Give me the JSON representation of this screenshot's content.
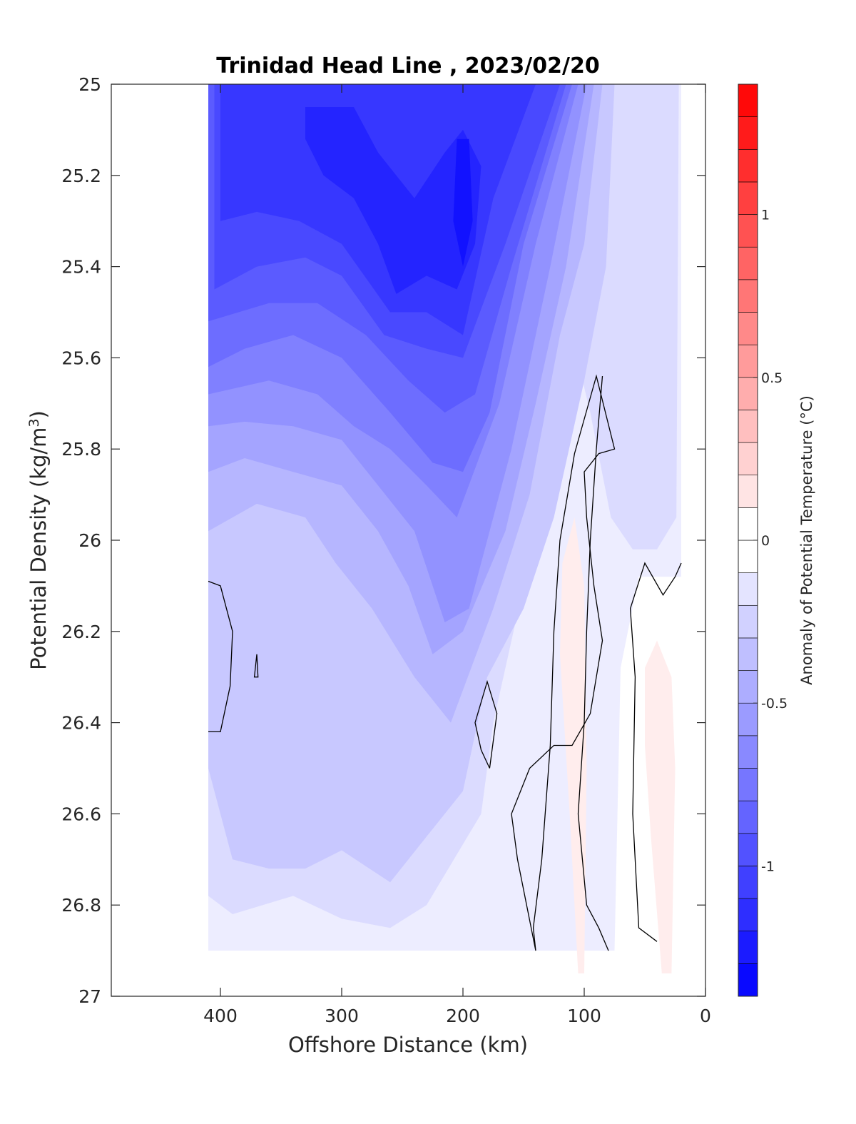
{
  "chart_data": {
    "type": "contour",
    "title": "Trinidad Head Line , 2023/02/20",
    "xlabel": "Offshore Distance (km)",
    "ylabel": "Potential Density (kg/m³)",
    "colorbar_label": "Anomaly of Potential Temperature (°C)",
    "x_axis_reversed": true,
    "y_axis_reversed": true,
    "xlim": [
      0,
      490
    ],
    "ylim": [
      25,
      27
    ],
    "xticks": [
      400,
      300,
      200,
      100,
      0
    ],
    "xtick_labels": [
      "400",
      "300",
      "200",
      "100",
      "0"
    ],
    "yticks": [
      25,
      25.2,
      25.4,
      25.6,
      25.8,
      26,
      26.2,
      26.4,
      26.6,
      26.8,
      27
    ],
    "ytick_labels": [
      "25",
      "25.2",
      "25.4",
      "25.6",
      "25.8",
      "26",
      "26.2",
      "26.4",
      "26.6",
      "26.8",
      "27"
    ],
    "colorbar": {
      "clim": [
        -1.4,
        1.4
      ],
      "ticks": [
        -1,
        -0.5,
        0,
        0.5,
        1
      ],
      "tick_labels": [
        "-1",
        "-0.5",
        "0",
        "0.5",
        "1"
      ],
      "levels_step": 0.1,
      "negative_color": "#0000ff",
      "positive_color": "#ff0000",
      "zero_color": "#ffffff"
    },
    "data_extent": {
      "x": [
        20,
        410
      ],
      "y": [
        25,
        26.9
      ]
    },
    "anomaly_regions": [
      {
        "level": -0.1,
        "polygon": [
          [
            410,
            25
          ],
          [
            20,
            25
          ],
          [
            20,
            26.08
          ],
          [
            55,
            26.08
          ],
          [
            70,
            26.28
          ],
          [
            75,
            26.9
          ],
          [
            410,
            26.9
          ]
        ]
      },
      {
        "level": -0.2,
        "polygon": [
          [
            410,
            25
          ],
          [
            22,
            25
          ],
          [
            24,
            25.95
          ],
          [
            40,
            26.02
          ],
          [
            60,
            26.02
          ],
          [
            78,
            25.95
          ],
          [
            95,
            25.72
          ],
          [
            115,
            25.5
          ],
          [
            150,
            26.1
          ],
          [
            175,
            26.4
          ],
          [
            185,
            26.6
          ],
          [
            230,
            26.8
          ],
          [
            260,
            26.85
          ],
          [
            300,
            26.83
          ],
          [
            340,
            26.78
          ],
          [
            390,
            26.82
          ],
          [
            410,
            26.78
          ]
        ]
      },
      {
        "level": -0.3,
        "polygon": [
          [
            410,
            25
          ],
          [
            75,
            25
          ],
          [
            82,
            25.4
          ],
          [
            100,
            25.65
          ],
          [
            125,
            25.95
          ],
          [
            150,
            26.15
          ],
          [
            180,
            26.3
          ],
          [
            200,
            26.55
          ],
          [
            230,
            26.65
          ],
          [
            260,
            26.75
          ],
          [
            300,
            26.68
          ],
          [
            330,
            26.72
          ],
          [
            360,
            26.72
          ],
          [
            390,
            26.7
          ],
          [
            410,
            26.5
          ]
        ]
      },
      {
        "level": -0.4,
        "polygon": [
          [
            410,
            25
          ],
          [
            85,
            25
          ],
          [
            100,
            25.35
          ],
          [
            120,
            25.55
          ],
          [
            145,
            25.9
          ],
          [
            175,
            26.15
          ],
          [
            210,
            26.4
          ],
          [
            240,
            26.3
          ],
          [
            275,
            26.15
          ],
          [
            305,
            26.05
          ],
          [
            330,
            25.95
          ],
          [
            370,
            25.92
          ],
          [
            410,
            25.98
          ]
        ]
      },
      {
        "level": -0.5,
        "polygon": [
          [
            410,
            25
          ],
          [
            92,
            25
          ],
          [
            115,
            25.4
          ],
          [
            140,
            25.7
          ],
          [
            165,
            25.98
          ],
          [
            200,
            26.2
          ],
          [
            225,
            26.25
          ],
          [
            245,
            26.1
          ],
          [
            270,
            25.98
          ],
          [
            300,
            25.88
          ],
          [
            340,
            25.85
          ],
          [
            380,
            25.82
          ],
          [
            410,
            25.85
          ]
        ]
      },
      {
        "level": -0.6,
        "polygon": [
          [
            410,
            25
          ],
          [
            98,
            25
          ],
          [
            128,
            25.4
          ],
          [
            160,
            25.8
          ],
          [
            195,
            26.15
          ],
          [
            215,
            26.18
          ],
          [
            240,
            25.98
          ],
          [
            270,
            25.88
          ],
          [
            300,
            25.78
          ],
          [
            340,
            25.75
          ],
          [
            380,
            25.74
          ],
          [
            410,
            25.75
          ]
        ]
      },
      {
        "level": -0.7,
        "polygon": [
          [
            410,
            25
          ],
          [
            105,
            25
          ],
          [
            140,
            25.35
          ],
          [
            170,
            25.7
          ],
          [
            205,
            25.95
          ],
          [
            230,
            25.88
          ],
          [
            260,
            25.8
          ],
          [
            290,
            25.75
          ],
          [
            320,
            25.68
          ],
          [
            360,
            25.65
          ],
          [
            410,
            25.68
          ]
        ]
      },
      {
        "level": -0.8,
        "polygon": [
          [
            410,
            25
          ],
          [
            110,
            25
          ],
          [
            150,
            25.35
          ],
          [
            178,
            25.72
          ],
          [
            200,
            25.85
          ],
          [
            225,
            25.83
          ],
          [
            260,
            25.72
          ],
          [
            300,
            25.6
          ],
          [
            340,
            25.55
          ],
          [
            380,
            25.58
          ],
          [
            410,
            25.62
          ]
        ]
      },
      {
        "level": -0.9,
        "polygon": [
          [
            410,
            25
          ],
          [
            115,
            25
          ],
          [
            160,
            25.4
          ],
          [
            190,
            25.68
          ],
          [
            215,
            25.72
          ],
          [
            245,
            25.65
          ],
          [
            280,
            25.55
          ],
          [
            320,
            25.48
          ],
          [
            360,
            25.48
          ],
          [
            410,
            25.52
          ]
        ]
      },
      {
        "level": -1.0,
        "polygon": [
          [
            405,
            25
          ],
          [
            120,
            25
          ],
          [
            165,
            25.35
          ],
          [
            200,
            25.6
          ],
          [
            230,
            25.58
          ],
          [
            265,
            25.55
          ],
          [
            300,
            25.42
          ],
          [
            330,
            25.38
          ],
          [
            370,
            25.4
          ],
          [
            405,
            25.45
          ]
        ]
      },
      {
        "level": -1.1,
        "polygon": [
          [
            400,
            25
          ],
          [
            140,
            25
          ],
          [
            175,
            25.25
          ],
          [
            200,
            25.55
          ],
          [
            230,
            25.5
          ],
          [
            260,
            25.5
          ],
          [
            300,
            25.35
          ],
          [
            335,
            25.3
          ],
          [
            370,
            25.28
          ],
          [
            400,
            25.3
          ]
        ]
      },
      {
        "level": -1.2,
        "polygon": [
          [
            330,
            25.05
          ],
          [
            290,
            25.05
          ],
          [
            270,
            25.15
          ],
          [
            240,
            25.25
          ],
          [
            215,
            25.15
          ],
          [
            200,
            25.1
          ],
          [
            185,
            25.18
          ],
          [
            190,
            25.35
          ],
          [
            205,
            25.45
          ],
          [
            230,
            25.42
          ],
          [
            255,
            25.46
          ],
          [
            270,
            25.35
          ],
          [
            290,
            25.25
          ],
          [
            315,
            25.2
          ],
          [
            330,
            25.12
          ]
        ]
      },
      {
        "level": -1.3,
        "polygon": [
          [
            205,
            25.12
          ],
          [
            195,
            25.12
          ],
          [
            192,
            25.3
          ],
          [
            200,
            25.4
          ],
          [
            208,
            25.3
          ]
        ]
      },
      {
        "level": 0.1,
        "polygon": [
          [
            118,
            26.05
          ],
          [
            108,
            25.95
          ],
          [
            100,
            26.1
          ],
          [
            98,
            26.5
          ],
          [
            100,
            26.95
          ],
          [
            105,
            26.95
          ],
          [
            112,
            26.6
          ],
          [
            120,
            26.25
          ]
        ]
      },
      {
        "level": 0.1,
        "polygon": [
          [
            50,
            26.28
          ],
          [
            40,
            26.22
          ],
          [
            28,
            26.3
          ],
          [
            25,
            26.5
          ],
          [
            28,
            26.95
          ],
          [
            36,
            26.95
          ],
          [
            45,
            26.65
          ],
          [
            50,
            26.45
          ]
        ]
      }
    ],
    "zero_contours": [
      {
        "points": [
          [
            410,
            26.09
          ],
          [
            400,
            26.1
          ],
          [
            390,
            26.2
          ],
          [
            392,
            26.32
          ],
          [
            400,
            26.42
          ],
          [
            410,
            26.42
          ]
        ]
      },
      {
        "points": [
          [
            370,
            26.25
          ],
          [
            372,
            26.3
          ],
          [
            369,
            26.3
          ],
          [
            370,
            26.25
          ]
        ]
      },
      {
        "points": [
          [
            178,
            26.5
          ],
          [
            172,
            26.38
          ],
          [
            180,
            26.31
          ],
          [
            190,
            26.4
          ],
          [
            185,
            26.46
          ],
          [
            178,
            26.5
          ]
        ]
      },
      {
        "points": [
          [
            140,
            26.9
          ],
          [
            155,
            26.7
          ],
          [
            160,
            26.6
          ],
          [
            145,
            26.5
          ],
          [
            125,
            26.45
          ],
          [
            110,
            26.45
          ],
          [
            95,
            26.38
          ],
          [
            90,
            26.3
          ],
          [
            85,
            26.22
          ],
          [
            92,
            26.1
          ],
          [
            98,
            25.95
          ],
          [
            100,
            25.85
          ],
          [
            88,
            25.81
          ],
          [
            75,
            25.8
          ],
          [
            90,
            25.64
          ],
          [
            108,
            25.81
          ],
          [
            120,
            26.0
          ],
          [
            125,
            26.2
          ],
          [
            128,
            26.45
          ],
          [
            135,
            26.7
          ],
          [
            142,
            26.85
          ],
          [
            140,
            26.9
          ]
        ]
      },
      {
        "points": [
          [
            80,
            26.9
          ],
          [
            88,
            26.85
          ],
          [
            98,
            26.8
          ],
          [
            105,
            26.6
          ],
          [
            100,
            26.4
          ],
          [
            98,
            26.2
          ],
          [
            95,
            26.0
          ],
          [
            90,
            25.8
          ],
          [
            85,
            25.64
          ]
        ]
      },
      {
        "points": [
          [
            40,
            26.88
          ],
          [
            55,
            26.85
          ],
          [
            60,
            26.6
          ],
          [
            58,
            26.3
          ],
          [
            62,
            26.15
          ],
          [
            50,
            26.05
          ],
          [
            35,
            26.12
          ],
          [
            25,
            26.08
          ],
          [
            20,
            26.05
          ]
        ]
      }
    ]
  }
}
